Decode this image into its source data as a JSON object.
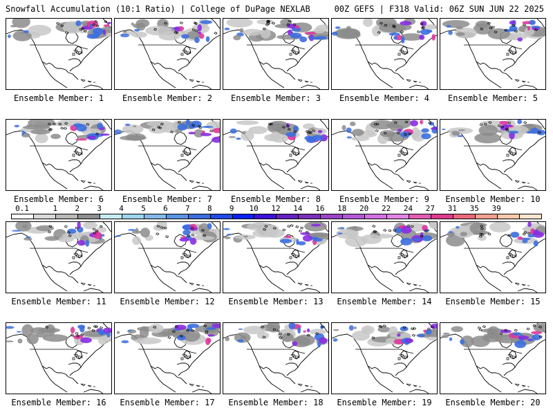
{
  "header": {
    "title": "Snowfall Accumulation (10:1 Ratio) | College of DuPage NEXLAB",
    "run_info": "00Z GEFS | F318 Valid: 06Z SUN JUN 22 2025"
  },
  "label_prefix": "Ensemble Member: ",
  "members": [
    "1",
    "2",
    "3",
    "4",
    "5",
    "6",
    "7",
    "8",
    "9",
    "10",
    "11",
    "12",
    "13",
    "14",
    "15",
    "16",
    "17",
    "18",
    "19",
    "20"
  ],
  "colorbar": {
    "ticks": [
      "0.1",
      "1",
      "2",
      "3",
      "4",
      "5",
      "6",
      "7",
      "8",
      "9",
      "10",
      "12",
      "14",
      "16",
      "18",
      "20",
      "22",
      "24",
      "27",
      "31",
      "35",
      "39"
    ],
    "colors": [
      "#ffffff",
      "#d9d9d9",
      "#b8b8b8",
      "#8f8f8f",
      "#c6ecf2",
      "#9ed4ee",
      "#84b8e8",
      "#5a93e2",
      "#3b6ee0",
      "#1f4ce6",
      "#0a22f2",
      "#3c12d8",
      "#6422c2",
      "#7d2eba",
      "#9a44c8",
      "#b45ad6",
      "#d070e2",
      "#e284e6",
      "#e25cb4",
      "#dc3c8c",
      "#e86a7a",
      "#f4a090",
      "#fac8ac",
      "#fde6d0"
    ]
  },
  "map": {
    "land_fill": "#ffffff",
    "snow_light": "#c8c8c8",
    "snow_mid": "#8c8c8c",
    "snow_blue": "#3b6ee0",
    "snow_purple": "#8a2be2",
    "snow_magenta": "#e0359a"
  }
}
